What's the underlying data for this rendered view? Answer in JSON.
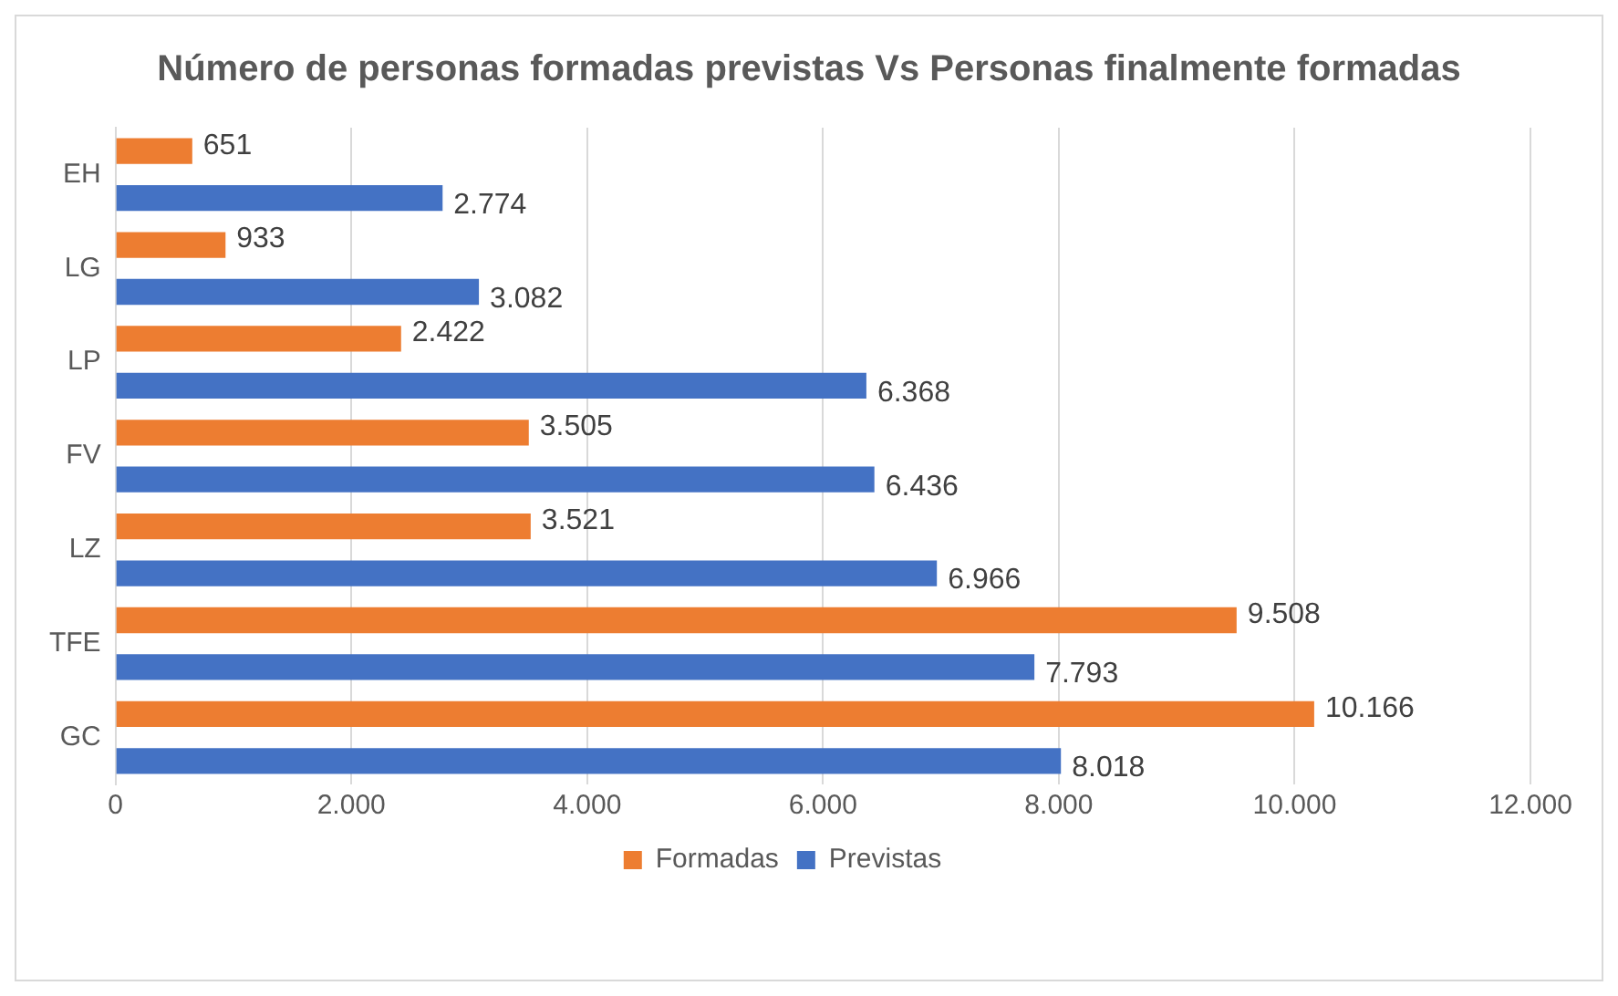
{
  "chart_data": {
    "type": "bar",
    "orientation": "horizontal",
    "title": "Número de personas formadas previstas Vs Personas finalmente formadas",
    "categories": [
      "EH",
      "LG",
      "LP",
      "FV",
      "LZ",
      "TFE",
      "GC"
    ],
    "series": [
      {
        "name": "Formadas",
        "color": "#ed7d31",
        "values": [
          651,
          933,
          2422,
          3505,
          3521,
          9508,
          10166
        ],
        "value_labels": [
          "651",
          "933",
          "2.422",
          "3.505",
          "3.521",
          "9.508",
          "10.166"
        ]
      },
      {
        "name": "Previstas",
        "color": "#4472c4",
        "values": [
          2774,
          3082,
          6368,
          6436,
          6966,
          7793,
          8018
        ],
        "value_labels": [
          "2.774",
          "3.082",
          "6.368",
          "6.436",
          "6.966",
          "7.793",
          "8.018"
        ]
      }
    ],
    "xlim": [
      0,
      12000
    ],
    "xticks": [
      {
        "value": 0,
        "label": "0"
      },
      {
        "value": 2000,
        "label": "2.000"
      },
      {
        "value": 4000,
        "label": "4.000"
      },
      {
        "value": 6000,
        "label": "6.000"
      },
      {
        "value": 8000,
        "label": "8.000"
      },
      {
        "value": 10000,
        "label": "10.000"
      },
      {
        "value": 12000,
        "label": "12.000"
      }
    ],
    "grid": "x",
    "legend": "bottom"
  }
}
